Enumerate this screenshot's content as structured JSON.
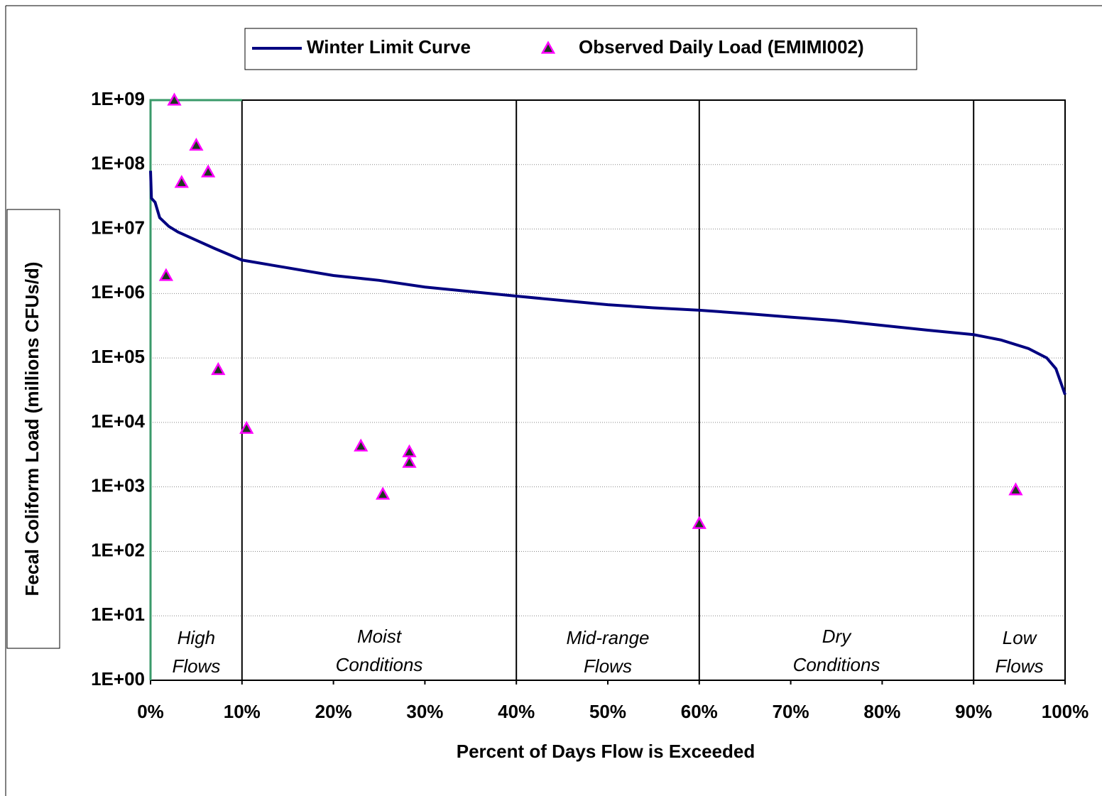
{
  "chart_data": {
    "type": "line",
    "xlabel": "Percent of Days Flow is Exceeded",
    "ylabel": "Fecal Coliform Load (millions CFUs/d)",
    "xlim": [
      0,
      100
    ],
    "ylim": [
      1,
      1000000000
    ],
    "yscale": "log",
    "grid": true,
    "xticks": [
      {
        "value": 0,
        "label": "0%"
      },
      {
        "value": 10,
        "label": "10%"
      },
      {
        "value": 20,
        "label": "20%"
      },
      {
        "value": 30,
        "label": "30%"
      },
      {
        "value": 40,
        "label": "40%"
      },
      {
        "value": 50,
        "label": "50%"
      },
      {
        "value": 60,
        "label": "60%"
      },
      {
        "value": 70,
        "label": "70%"
      },
      {
        "value": 80,
        "label": "80%"
      },
      {
        "value": 90,
        "label": "90%"
      },
      {
        "value": 100,
        "label": "100%"
      }
    ],
    "yticks": [
      {
        "value": 1,
        "label": "1E+00"
      },
      {
        "value": 10,
        "label": "1E+01"
      },
      {
        "value": 100,
        "label": "1E+02"
      },
      {
        "value": 1000,
        "label": "1E+03"
      },
      {
        "value": 10000,
        "label": "1E+04"
      },
      {
        "value": 100000,
        "label": "1E+05"
      },
      {
        "value": 1000000,
        "label": "1E+06"
      },
      {
        "value": 10000000,
        "label": "1E+07"
      },
      {
        "value": 100000000,
        "label": "1E+08"
      },
      {
        "value": 1000000000,
        "label": "1E+09"
      }
    ],
    "dividers": [
      10,
      40,
      60,
      90
    ],
    "zones": [
      [
        "High",
        "Flows"
      ],
      [
        "Moist",
        "Conditions"
      ],
      [
        "Mid-range",
        "Flows"
      ],
      [
        "Dry",
        "Conditions"
      ],
      [
        "Low",
        "Flows"
      ]
    ],
    "series": [
      {
        "name": "Winter Limit Curve",
        "type": "line",
        "color": "#000080",
        "x": [
          0,
          0.1,
          0.5,
          1,
          2,
          3,
          5,
          7,
          10,
          15,
          20,
          25,
          30,
          35,
          40,
          45,
          50,
          55,
          60,
          65,
          70,
          75,
          80,
          85,
          90,
          93,
          96,
          98,
          99,
          100
        ],
        "values": [
          80000000,
          30000000,
          26000000,
          15000000,
          11000000,
          9000000,
          6700000,
          5000000,
          3300000,
          2500000,
          1900000,
          1600000,
          1260000,
          1070000,
          910000,
          780000,
          670000,
          600000,
          550000,
          490000,
          430000,
          380000,
          320000,
          270000,
          230000,
          190000,
          140000,
          100000,
          68000,
          27000
        ]
      },
      {
        "name": "Observed Daily Load (EMIMI002)",
        "type": "scatter",
        "color": "#1e3a1e",
        "edgecolor": "#ff00ff",
        "x": [
          2.6,
          1.7,
          3.4,
          5.0,
          6.3,
          7.4,
          10.5,
          23.0,
          25.4,
          28.3,
          28.3,
          60.0,
          94.6
        ],
        "values": [
          1000000000,
          1900000,
          53000000,
          200000000,
          77000000,
          66000,
          8100,
          4300,
          770,
          3500,
          2400,
          270,
          900
        ]
      }
    ]
  }
}
